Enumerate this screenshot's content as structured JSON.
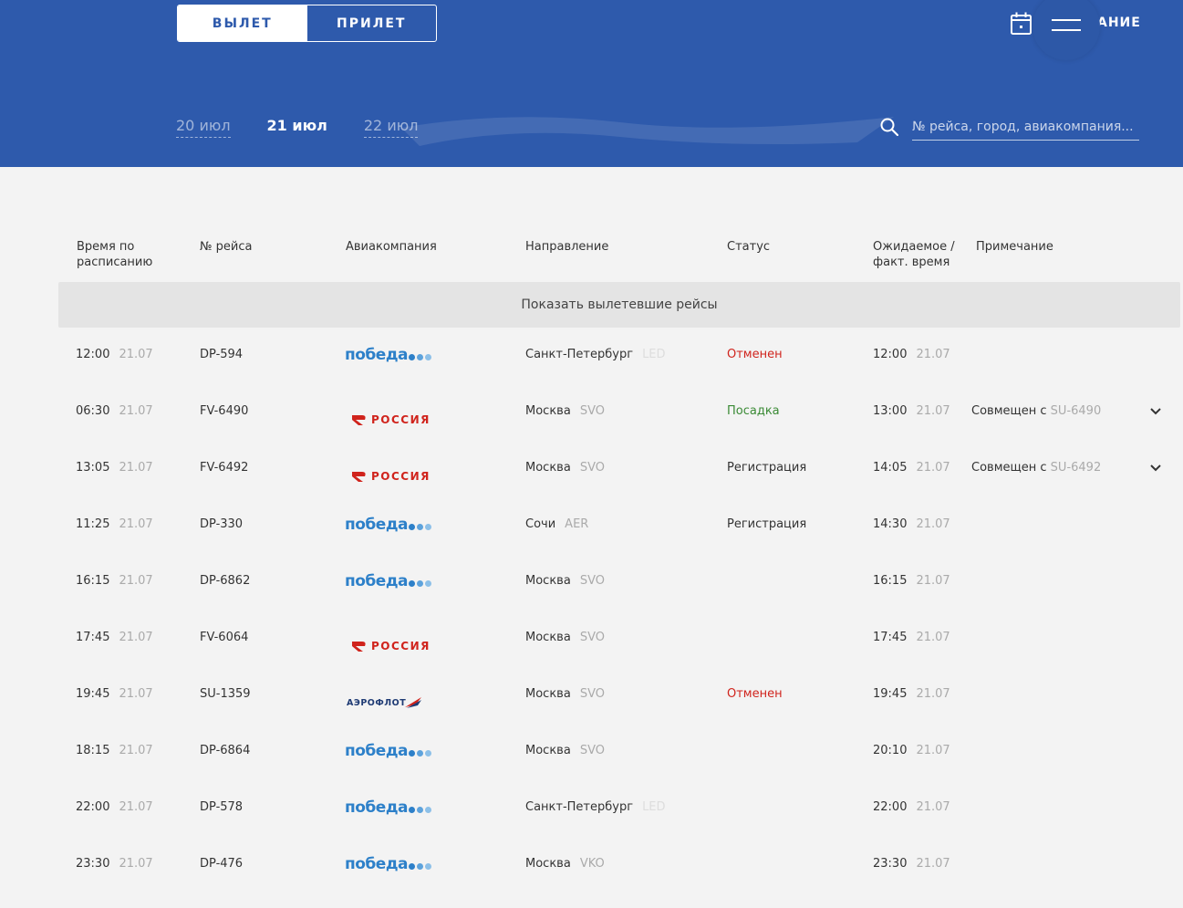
{
  "header": {
    "tabs": [
      {
        "label": "ВЫЛЕТ",
        "active": true
      },
      {
        "label": "ПРИЛЕТ",
        "active": false
      }
    ],
    "dates": [
      {
        "label": "20 июл",
        "current": false
      },
      {
        "label": "21 июл",
        "current": true
      },
      {
        "label": "22 июл",
        "current": false
      }
    ],
    "search": {
      "placeholder": "№ рейса, город, авиакомпания..."
    },
    "schedule_label": "АНИЕ",
    "icons": [
      "calendar-icon",
      "menu-icon",
      "search-icon"
    ]
  },
  "columns": {
    "time": "Время по расписанию",
    "flight": "№ рейса",
    "airline": "Авиакомпания",
    "direction": "Направление",
    "status": "Статус",
    "expected": "Ожидаемое / факт. время",
    "note": "Примечание"
  },
  "show_departed": "Показать вылетевшие рейсы",
  "airlines": {
    "pobeda": {
      "name": "победа",
      "color": "#2d80c9"
    },
    "rossiya": {
      "name": "РОССИЯ",
      "color": "#d0231c"
    },
    "aeroflot": {
      "name": "АЭРОФЛОТ",
      "color": "#1f3b74"
    }
  },
  "colors": {
    "header_bg": "#2e5aac",
    "cancelled": "#d0231c",
    "boarding": "#3a8a35"
  },
  "flights": [
    {
      "time": "12:00",
      "date": "21.07",
      "flight": "DP-594",
      "airline": "pobeda",
      "city": "Санкт-Петербург",
      "code": "LED",
      "status": "Отменен",
      "status_type": "cancel",
      "exp_time": "12:00",
      "exp_date": "21.07",
      "note_text": "",
      "note_code": "",
      "expand": false
    },
    {
      "time": "06:30",
      "date": "21.07",
      "flight": "FV-6490",
      "airline": "rossiya",
      "city": "Москва",
      "code": "SVO",
      "status": "Посадка",
      "status_type": "board",
      "exp_time": "13:00",
      "exp_date": "21.07",
      "note_text": "Совмещен с",
      "note_code": "SU-6490",
      "expand": true
    },
    {
      "time": "13:05",
      "date": "21.07",
      "flight": "FV-6492",
      "airline": "rossiya",
      "city": "Москва",
      "code": "SVO",
      "status": "Регистрация",
      "status_type": "reg",
      "exp_time": "14:05",
      "exp_date": "21.07",
      "note_text": "Совмещен с",
      "note_code": "SU-6492",
      "expand": true
    },
    {
      "time": "11:25",
      "date": "21.07",
      "flight": "DP-330",
      "airline": "pobeda",
      "city": "Сочи",
      "code": "AER",
      "status": "Регистрация",
      "status_type": "reg",
      "exp_time": "14:30",
      "exp_date": "21.07",
      "note_text": "",
      "note_code": "",
      "expand": false
    },
    {
      "time": "16:15",
      "date": "21.07",
      "flight": "DP-6862",
      "airline": "pobeda",
      "city": "Москва",
      "code": "SVO",
      "status": "",
      "status_type": "",
      "exp_time": "16:15",
      "exp_date": "21.07",
      "note_text": "",
      "note_code": "",
      "expand": false
    },
    {
      "time": "17:45",
      "date": "21.07",
      "flight": "FV-6064",
      "airline": "rossiya",
      "city": "Москва",
      "code": "SVO",
      "status": "",
      "status_type": "",
      "exp_time": "17:45",
      "exp_date": "21.07",
      "note_text": "",
      "note_code": "",
      "expand": false
    },
    {
      "time": "19:45",
      "date": "21.07",
      "flight": "SU-1359",
      "airline": "aeroflot",
      "city": "Москва",
      "code": "SVO",
      "status": "Отменен",
      "status_type": "cancel",
      "exp_time": "19:45",
      "exp_date": "21.07",
      "note_text": "",
      "note_code": "",
      "expand": false
    },
    {
      "time": "18:15",
      "date": "21.07",
      "flight": "DP-6864",
      "airline": "pobeda",
      "city": "Москва",
      "code": "SVO",
      "status": "",
      "status_type": "",
      "exp_time": "20:10",
      "exp_date": "21.07",
      "note_text": "",
      "note_code": "",
      "expand": false
    },
    {
      "time": "22:00",
      "date": "21.07",
      "flight": "DP-578",
      "airline": "pobeda",
      "city": "Санкт-Петербург",
      "code": "LED",
      "status": "",
      "status_type": "",
      "exp_time": "22:00",
      "exp_date": "21.07",
      "note_text": "",
      "note_code": "",
      "expand": false
    },
    {
      "time": "23:30",
      "date": "21.07",
      "flight": "DP-476",
      "airline": "pobeda",
      "city": "Москва",
      "code": "VKO",
      "status": "",
      "status_type": "",
      "exp_time": "23:30",
      "exp_date": "21.07",
      "note_text": "",
      "note_code": "",
      "expand": false
    }
  ]
}
